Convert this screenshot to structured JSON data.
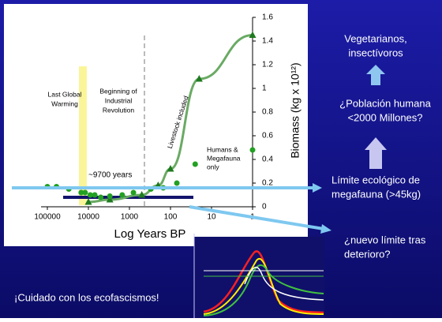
{
  "chart_data": {
    "type": "line",
    "xlabel": "Log Years BP",
    "ylabel": "Biomass (kg x 10¹²)",
    "xscale": "log",
    "xlim": [
      100000,
      1
    ],
    "xticks": [
      100000,
      10000,
      1000,
      100,
      10,
      1
    ],
    "ylim": [
      0,
      1.6
    ],
    "yticks": [
      0,
      0.2,
      0.4,
      0.6,
      0.8,
      1,
      1.2,
      1.4,
      1.6
    ],
    "series": [
      {
        "marker": "triangle",
        "color": "#1f7a1f",
        "line_color": "#6aaa64",
        "x": [
          10000,
          3000,
          500,
          200,
          100,
          20,
          1
        ],
        "values": [
          0.04,
          0.06,
          0.1,
          0.18,
          0.32,
          1.08,
          1.45
        ]
      },
      {
        "marker": "circle",
        "color": "#22a022",
        "x": [
          100000,
          60000,
          30000,
          15000,
          12000,
          9000,
          7000,
          5000,
          3000,
          1500,
          800,
          300,
          150,
          70,
          25,
          1
        ],
        "values": [
          0.17,
          0.17,
          0.15,
          0.12,
          0.12,
          0.1,
          0.1,
          0.08,
          0.09,
          0.1,
          0.12,
          0.15,
          0.16,
          0.2,
          0.36,
          0.48
        ]
      }
    ],
    "annotations": {
      "warming": [
        "Last Global",
        "Warming"
      ],
      "industrial": [
        "Beginning of",
        "Industrial",
        "Revolution"
      ],
      "livestock": "Livestock included",
      "humans": [
        "Humans &",
        "Megafauna",
        "only"
      ],
      "years": "~9700 years"
    }
  },
  "slide": {
    "vegetarians": [
      "Vegetarianos,",
      "insectívoros"
    ],
    "population": [
      "¿Población humana",
      "<2000 Millones?"
    ],
    "limit": [
      "Límite ecológico de",
      "megafauna (>45kg)"
    ],
    "new_limit": [
      "¿nuevo límite tras",
      "deterioro?"
    ],
    "warning": "¡Cuidado con los ecofascismos!"
  }
}
